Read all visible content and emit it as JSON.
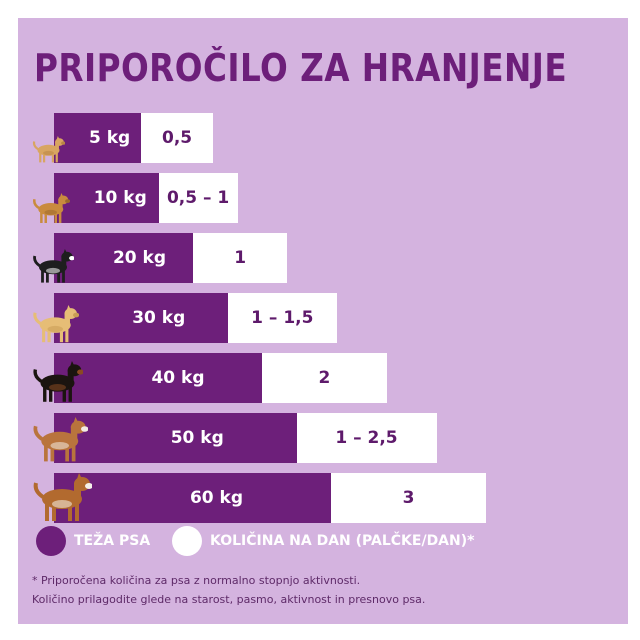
{
  "title": "PRIPOROČILO ZA HRANJENJE",
  "chart_data": {
    "type": "bar",
    "orientation": "horizontal",
    "stacked": true,
    "categories": [
      "5 kg",
      "10 kg",
      "20 kg",
      "30 kg",
      "40 kg",
      "50 kg",
      "60 kg"
    ],
    "weights_kg": [
      5,
      10,
      20,
      30,
      40,
      50,
      60
    ],
    "amount_labels": [
      "0,5",
      "0,5 – 1",
      "1",
      "1 – 1,5",
      "2",
      "1 – 2,5",
      "3"
    ],
    "amount_ranges": [
      [
        0.5,
        0.5
      ],
      [
        0.5,
        1
      ],
      [
        1,
        1
      ],
      [
        1,
        1.5
      ],
      [
        2,
        2
      ],
      [
        1,
        2.5
      ],
      [
        3,
        3
      ]
    ],
    "series": [
      {
        "name": "TEŽA PSA",
        "color": "#6d1f7a"
      },
      {
        "name": "KOLIČINA NA DAN (PALČKE/DAN)*",
        "color": "#ffffff"
      }
    ],
    "legend_position": "bottom-left",
    "grid": false
  },
  "dogs": [
    {
      "icon": "chihuahua-icon",
      "coat": "#d8a561",
      "accent": "#b98545"
    },
    {
      "icon": "terrier-icon",
      "coat": "#c98b3e",
      "accent": "#9c6a2c"
    },
    {
      "icon": "border-collie-icon",
      "coat": "#1e1e1e",
      "accent": "#ffffff"
    },
    {
      "icon": "labrador-icon",
      "coat": "#e6bd76",
      "accent": "#c99c55"
    },
    {
      "icon": "rottweiler-icon",
      "coat": "#1b1410",
      "accent": "#8a4a22"
    },
    {
      "icon": "boxer-icon",
      "coat": "#b9743d",
      "accent": "#f3ece4"
    },
    {
      "icon": "saint-bernard-icon",
      "coat": "#b26a2f",
      "accent": "#f5f0ea"
    }
  ],
  "footnotes": [
    "* Priporočena količina za psa z normalno stopnjo aktivnosti.",
    "Količino prilagodite glede na starost, pasmo, aktivnost in presnovo psa."
  ],
  "colors": {
    "background": "#d4b3df",
    "accent": "#6d1f7a",
    "white": "#ffffff"
  }
}
